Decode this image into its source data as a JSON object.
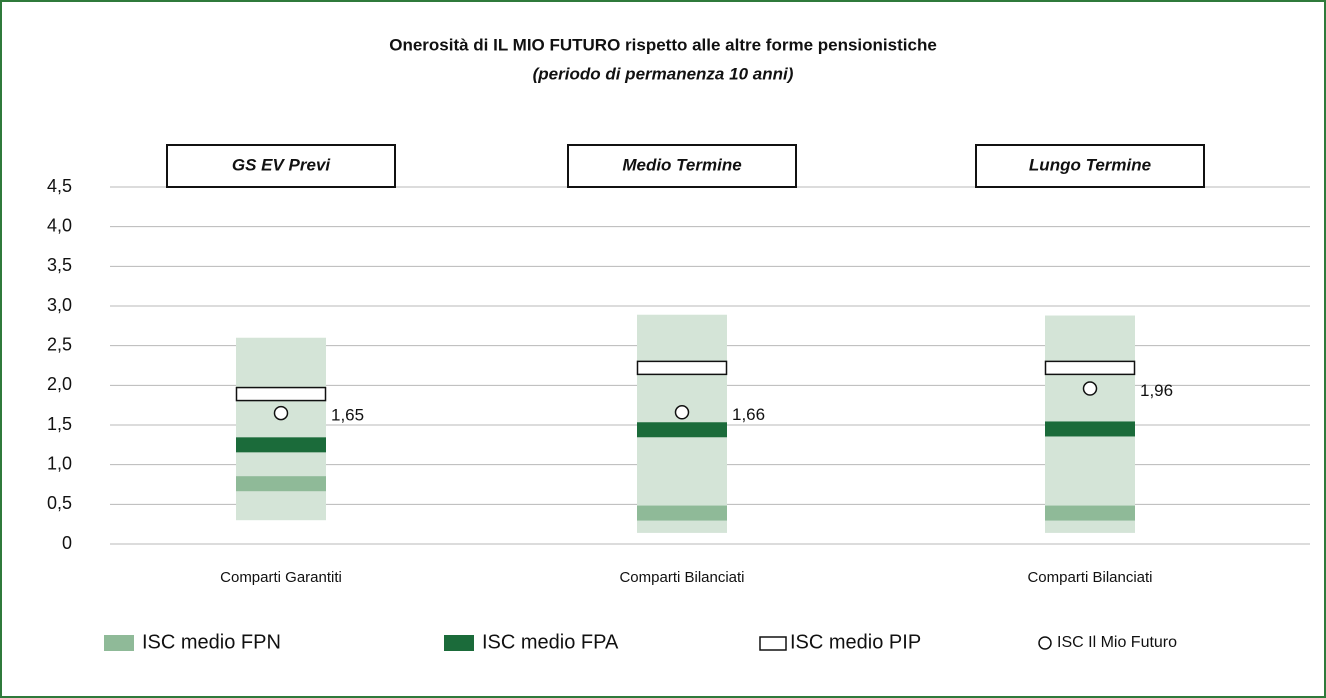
{
  "chart_data": {
    "type": "range-marker",
    "title": "Onerosità di IL MIO FUTURO rispetto alle altre forme pensionistiche",
    "subtitle": "(periodo di permanenza 10 anni)",
    "panels": [
      "GS EV Previ",
      "Medio Termine",
      "Lungo Termine"
    ],
    "categories": [
      "Comparti Garantiti",
      "Comparti Bilanciati",
      "Comparti Bilanciati"
    ],
    "ranges": {
      "color": "#d4e4d7",
      "min": [
        0.3,
        0.14,
        0.14
      ],
      "max": [
        2.6,
        2.89,
        2.88
      ]
    },
    "series": [
      {
        "name": "ISC medio FPN",
        "color": "#8fba98",
        "marker": "band",
        "values": [
          0.76,
          0.39,
          0.39
        ]
      },
      {
        "name": "ISC medio FPA",
        "color": "#1b6b3a",
        "marker": "band",
        "values": [
          1.25,
          1.44,
          1.45
        ]
      },
      {
        "name": "ISC medio PIP",
        "color": "#ffffff",
        "marker": "box",
        "values": [
          1.89,
          2.22,
          2.22
        ]
      },
      {
        "name": "ISC Il Mio Futuro",
        "color": "#ffffff",
        "marker": "circle",
        "values": [
          1.65,
          1.66,
          1.96
        ],
        "value_labels": [
          "1,65",
          "1,66",
          "1,96"
        ]
      }
    ],
    "ylim": [
      0,
      4.5
    ],
    "yticks": [
      0,
      {
        "value": 0.5,
        "label": "0,5"
      },
      {
        "value": 1,
        "label": "1,0"
      },
      {
        "value": 1.5,
        "label": "1,5"
      },
      {
        "value": 2,
        "label": "2,0"
      },
      {
        "value": 2.5,
        "label": "2,5"
      },
      {
        "value": 3,
        "label": "3,0"
      },
      {
        "value": 3.5,
        "label": "3,5"
      },
      {
        "value": 4,
        "label": "4,0"
      },
      {
        "value": 4.5,
        "label": "4,5"
      }
    ],
    "grid": true
  }
}
